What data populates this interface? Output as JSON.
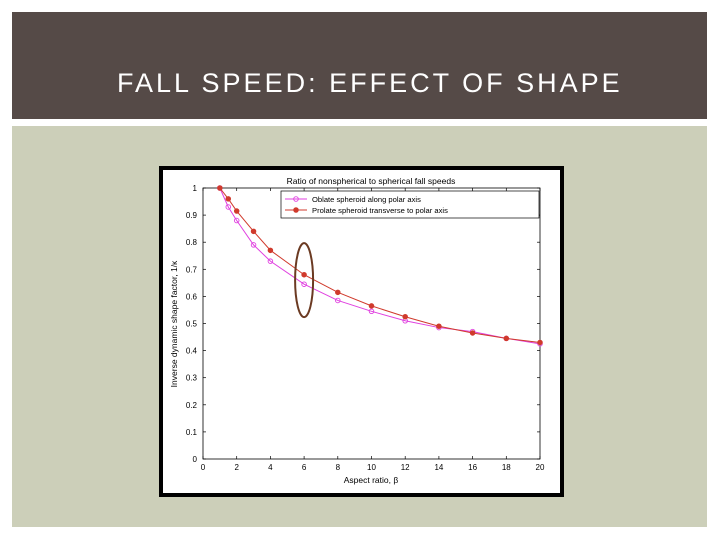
{
  "slide": {
    "title": "FALL SPEED: EFFECT OF SHAPE",
    "colors": {
      "title_bar": "#554a47",
      "panel": "#cccfb9",
      "annotation": "#6b3a22"
    }
  },
  "chart_data": {
    "type": "line",
    "title": "Ratio of nonspherical to spherical fall speeds",
    "xlabel": "Aspect ratio, β",
    "ylabel": "Inverse dynamic shape factor, 1/κ",
    "xlim": [
      0,
      20
    ],
    "ylim": [
      0,
      1
    ],
    "xticks": [
      0,
      2,
      4,
      6,
      8,
      10,
      12,
      14,
      16,
      18,
      20
    ],
    "yticks": [
      0,
      0.1,
      0.2,
      0.3,
      0.4,
      0.5,
      0.6,
      0.7,
      0.8,
      0.9,
      1
    ],
    "legend_position": "top-right",
    "series": [
      {
        "name": "Oblate spheroid along polar axis",
        "color": "#e040e0",
        "x": [
          1,
          1.5,
          2,
          3,
          4,
          6,
          8,
          10,
          12,
          14,
          16,
          18,
          20
        ],
        "y": [
          1.0,
          0.93,
          0.88,
          0.79,
          0.73,
          0.645,
          0.585,
          0.545,
          0.51,
          0.485,
          0.47,
          0.445,
          0.425
        ]
      },
      {
        "name": "Prolate spheroid transverse to polar axis",
        "color": "#d03a2c",
        "x": [
          1,
          1.5,
          2,
          3,
          4,
          6,
          8,
          10,
          12,
          14,
          16,
          18,
          20
        ],
        "y": [
          1.0,
          0.96,
          0.915,
          0.84,
          0.77,
          0.68,
          0.615,
          0.565,
          0.525,
          0.49,
          0.465,
          0.445,
          0.43
        ]
      }
    ],
    "annotation": {
      "type": "ellipse",
      "center_x": 6,
      "center_y": 0.66
    }
  }
}
